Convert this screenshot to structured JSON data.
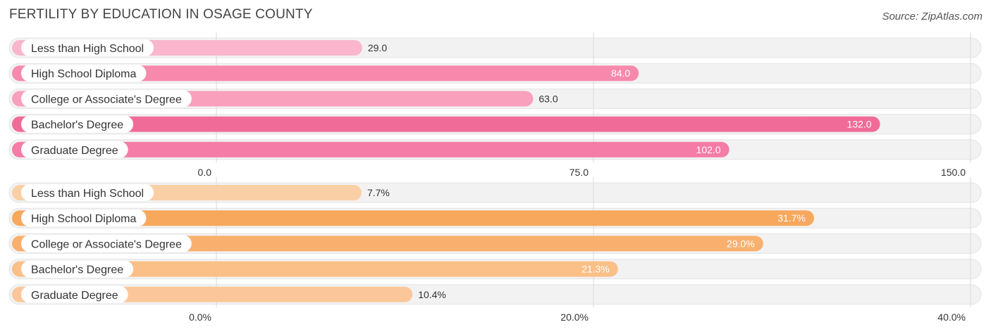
{
  "title": "FERTILITY BY EDUCATION IN OSAGE COUNTY",
  "source": "Source: ZipAtlas.com",
  "chart_data": [
    {
      "type": "bar",
      "orientation": "horizontal",
      "categories": [
        "Less than High School",
        "High School Diploma",
        "College or Associate's Degree",
        "Bachelor's Degree",
        "Graduate Degree"
      ],
      "values": [
        29.0,
        84.0,
        63.0,
        132.0,
        102.0
      ],
      "value_labels": [
        "29.0",
        "84.0",
        "63.0",
        "132.0",
        "102.0"
      ],
      "xlim": [
        0,
        150
      ],
      "ticks": [
        0,
        75,
        150
      ],
      "tick_labels": [
        "0.0",
        "75.0",
        "150.0"
      ],
      "grid": true,
      "colors": [
        "#f9b6cc",
        "#f78aac",
        "#f9a0bd",
        "#f06b98",
        "#f47ca6"
      ]
    },
    {
      "type": "bar",
      "orientation": "horizontal",
      "categories": [
        "Less than High School",
        "High School Diploma",
        "College or Associate's Degree",
        "Bachelor's Degree",
        "Graduate Degree"
      ],
      "values": [
        7.7,
        31.7,
        29.0,
        21.3,
        10.4
      ],
      "value_labels": [
        "7.7%",
        "31.7%",
        "29.0%",
        "21.3%",
        "10.4%"
      ],
      "xlim": [
        0,
        40
      ],
      "ticks": [
        0,
        20,
        40
      ],
      "tick_labels": [
        "0.0%",
        "20.0%",
        "40.0%"
      ],
      "grid": true,
      "colors": [
        "#fbcfa6",
        "#f7a85c",
        "#f9b06e",
        "#fbbf88",
        "#fbc79a"
      ]
    }
  ]
}
